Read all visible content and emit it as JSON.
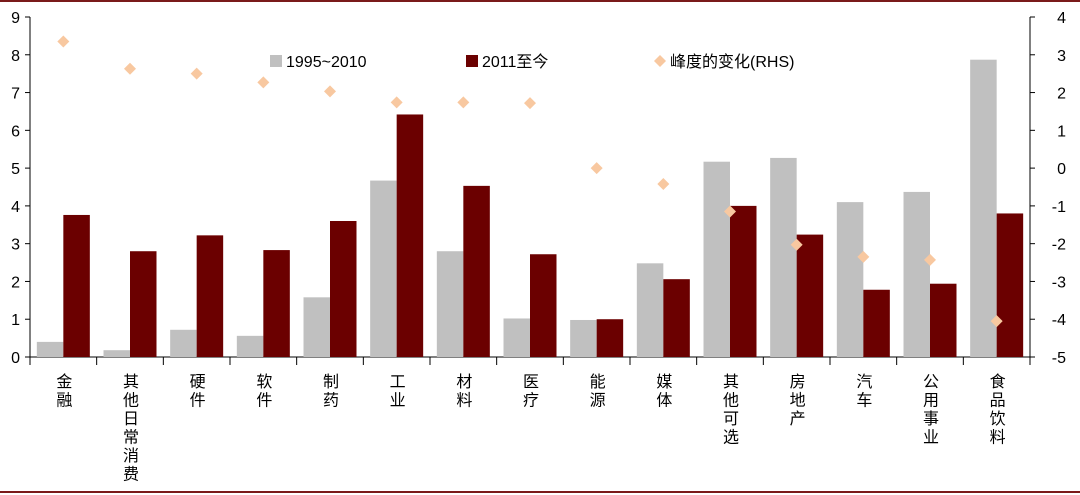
{
  "chart_data": {
    "type": "bar",
    "categories": [
      "金融",
      "其他日常消费",
      "硬件",
      "软件",
      "制药",
      "工业",
      "材料",
      "医疗",
      "能源",
      "媒体",
      "其他可选",
      "房地产",
      "汽车",
      "公用事业",
      "食品饮料"
    ],
    "series": [
      {
        "name": "1995~2010",
        "type": "bar",
        "axis": "left",
        "color": "#c0c0c0",
        "values": [
          0.4,
          0.18,
          0.72,
          0.56,
          1.58,
          4.67,
          2.8,
          1.02,
          0.98,
          2.48,
          5.17,
          5.27,
          4.1,
          4.37,
          7.87
        ]
      },
      {
        "name": "2011至今",
        "type": "bar",
        "axis": "left",
        "color": "#6b0000",
        "values": [
          3.76,
          2.8,
          3.22,
          2.83,
          3.6,
          6.42,
          4.53,
          2.72,
          1.0,
          2.06,
          4.0,
          3.24,
          1.78,
          1.94,
          3.8
        ]
      },
      {
        "name": "峰度的变化(RHS)",
        "type": "scatter",
        "axis": "right",
        "color": "#f8c8a0",
        "values": [
          3.35,
          2.63,
          2.5,
          2.27,
          2.03,
          1.74,
          1.74,
          1.72,
          0.0,
          -0.42,
          -1.15,
          -2.03,
          -2.35,
          -2.43,
          -4.05
        ]
      }
    ],
    "ylim": [
      0,
      9
    ],
    "y2lim": [
      -5,
      4
    ],
    "yticks": [
      "0",
      "1",
      "2",
      "3",
      "4",
      "5",
      "6",
      "7",
      "8",
      "9"
    ],
    "y2ticks": [
      "-5",
      "-4",
      "-3",
      "-2",
      "-1",
      "0",
      "1",
      "2",
      "3",
      "4"
    ],
    "legend_position": "top",
    "grid": false,
    "xlabel": "",
    "ylabel": ""
  }
}
